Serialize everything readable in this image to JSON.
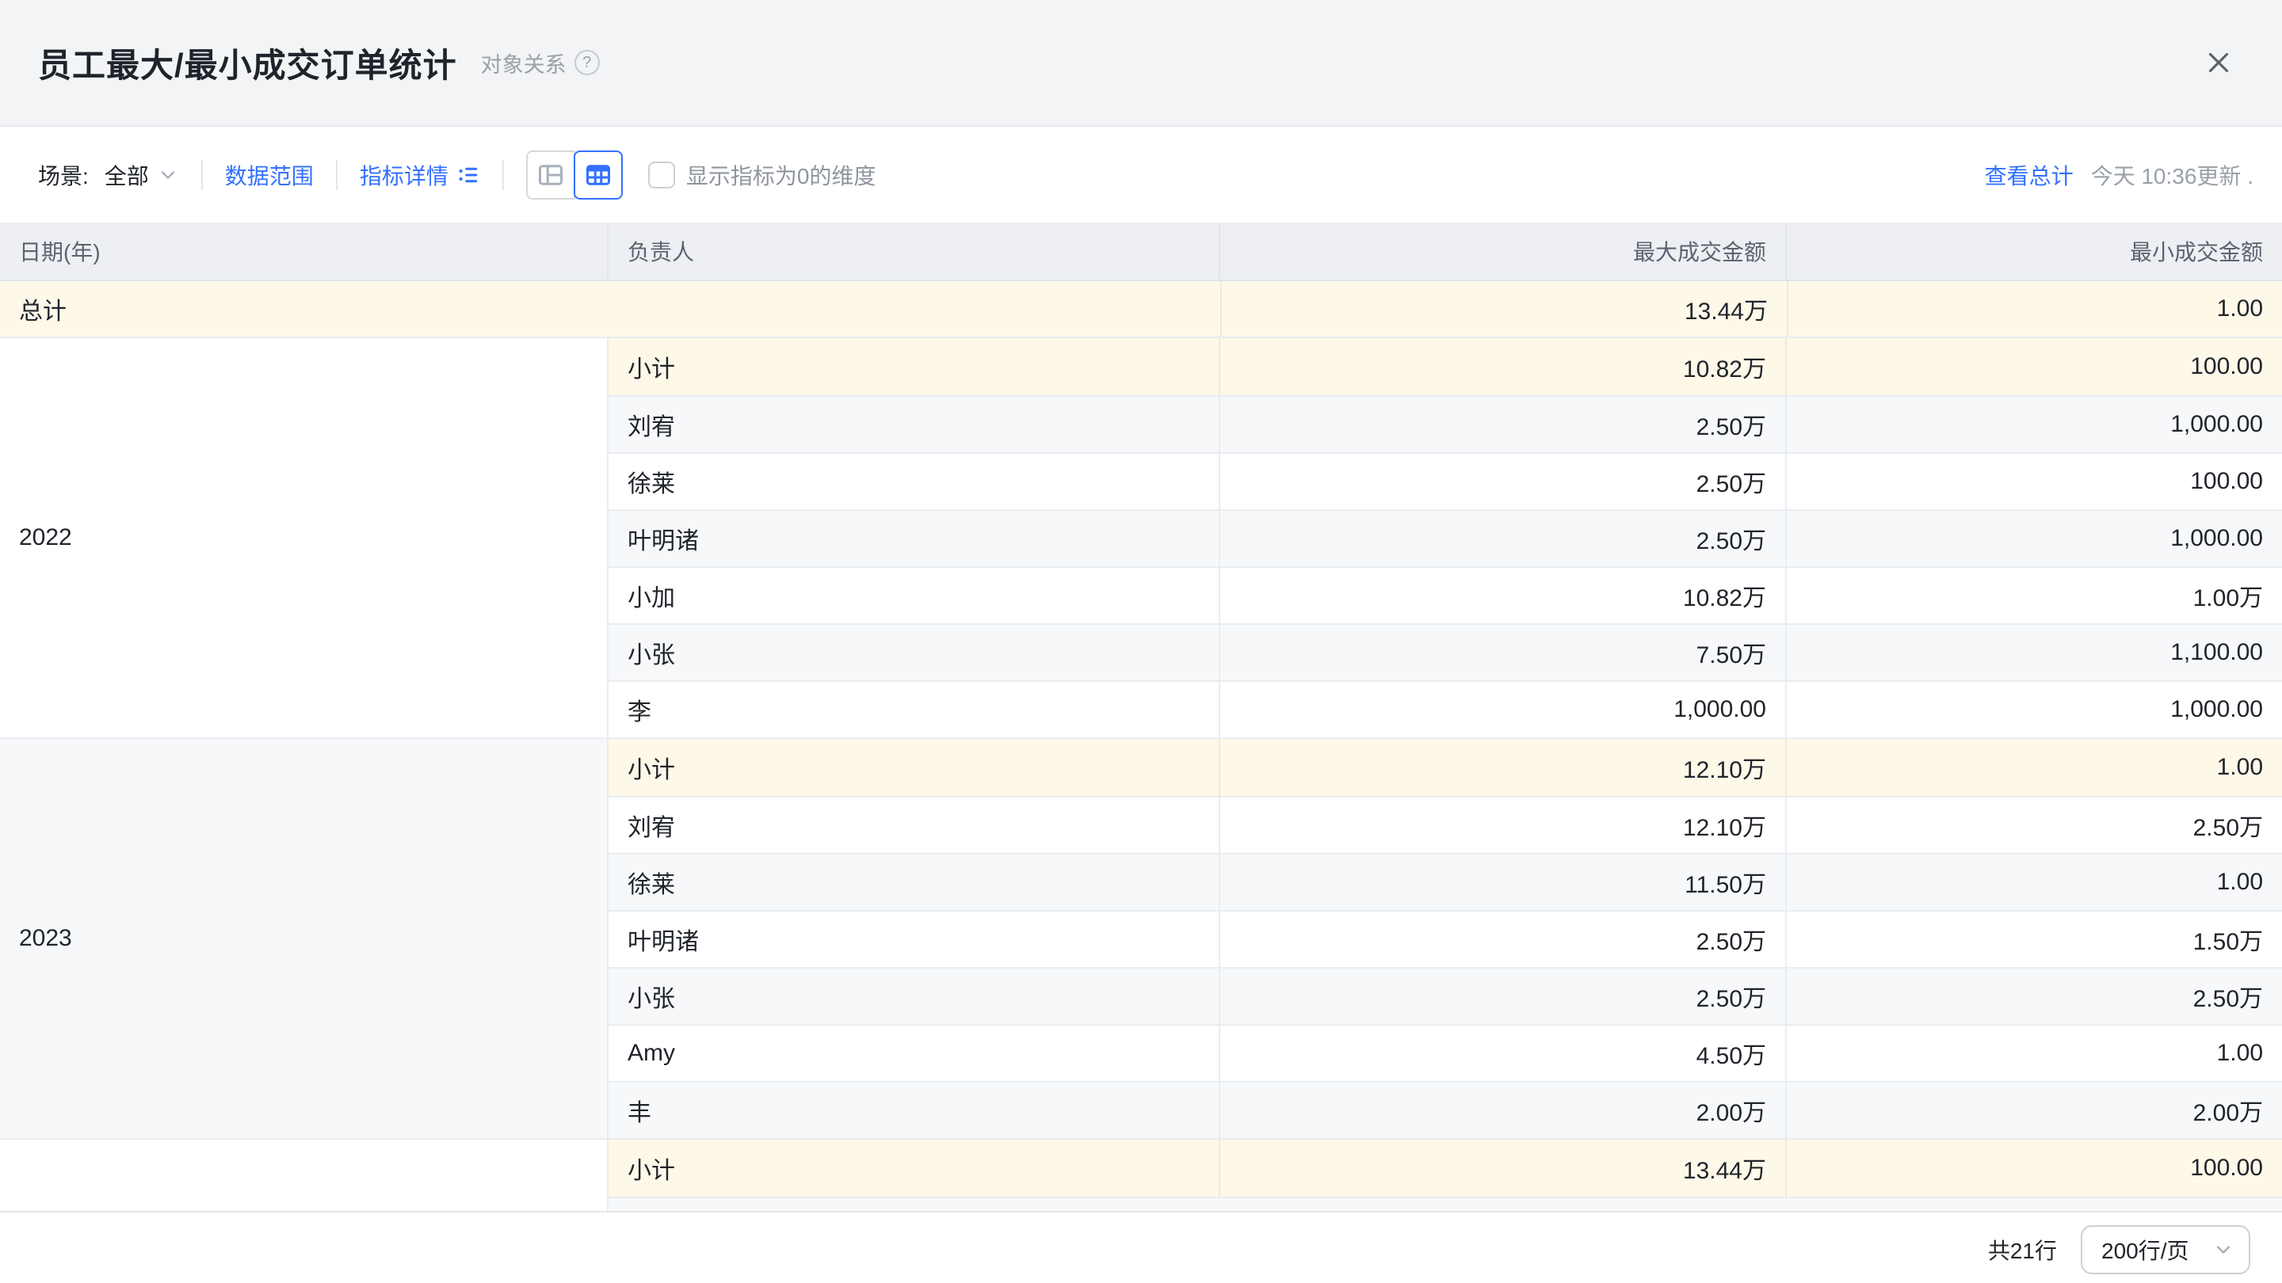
{
  "header": {
    "title": "员工最大/最小成交订单统计",
    "relation_label": "对象关系"
  },
  "toolbar": {
    "scene_label": "场景:",
    "scene_value": "全部",
    "data_range_label": "数据范围",
    "metric_detail_label": "指标详情",
    "show_zero_label": "显示指标为0的维度",
    "show_zero_checked": false,
    "view_total_label": "查看总计",
    "updated_text": "今天 10:36更新 ."
  },
  "table": {
    "columns": [
      "日期(年)",
      "负责人",
      "最大成交金额",
      "最小成交金额"
    ],
    "grand_total": {
      "label": "总计",
      "max": "13.44万",
      "min": "1.00"
    },
    "groups": [
      {
        "year": "2022",
        "rows": [
          {
            "name": "小计",
            "max": "10.82万",
            "min": "100.00",
            "subtotal": true
          },
          {
            "name": "刘宥",
            "max": "2.50万",
            "min": "1,000.00"
          },
          {
            "name": "徐莱",
            "max": "2.50万",
            "min": "100.00"
          },
          {
            "name": "叶明诸",
            "max": "2.50万",
            "min": "1,000.00"
          },
          {
            "name": "小加",
            "max": "10.82万",
            "min": "1.00万"
          },
          {
            "name": "小张",
            "max": "7.50万",
            "min": "1,100.00"
          },
          {
            "name": "李",
            "max": "1,000.00",
            "min": "1,000.00"
          }
        ]
      },
      {
        "year": "2023",
        "rows": [
          {
            "name": "小计",
            "max": "12.10万",
            "min": "1.00",
            "subtotal": true
          },
          {
            "name": "刘宥",
            "max": "12.10万",
            "min": "2.50万"
          },
          {
            "name": "徐莱",
            "max": "11.50万",
            "min": "1.00"
          },
          {
            "name": "叶明诸",
            "max": "2.50万",
            "min": "1.50万"
          },
          {
            "name": "小张",
            "max": "2.50万",
            "min": "2.50万"
          },
          {
            "name": "Amy",
            "max": "4.50万",
            "min": "1.00"
          },
          {
            "name": "丰",
            "max": "2.00万",
            "min": "2.00万"
          }
        ]
      },
      {
        "year": "",
        "partial": true,
        "rows": [
          {
            "name": "小计",
            "max": "13.44万",
            "min": "100.00",
            "subtotal": true
          }
        ]
      }
    ]
  },
  "footer": {
    "row_count": "共21行",
    "page_size": "200行/页"
  },
  "colors": {
    "accent_blue": "#3370ff",
    "subtotal_bg": "#fdf8e8",
    "stripe_bg": "#f7f8fa",
    "table_header_bg": "#edeff3",
    "topbar_bg": "#f3f4f6"
  }
}
